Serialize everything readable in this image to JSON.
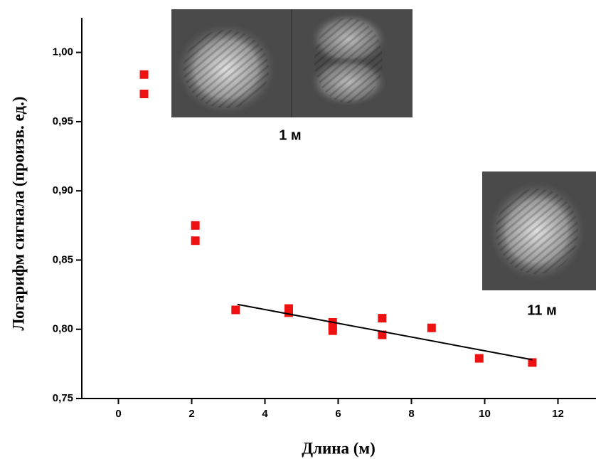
{
  "chart_data": {
    "type": "scatter",
    "xlabel": "Длина (м)",
    "ylabel": "Логарифм сигнала (произв. ед.)",
    "annotations": [
      "1 м",
      "11 м"
    ],
    "xlim": [
      -1,
      13
    ],
    "xticks": [
      0,
      2,
      4,
      6,
      8,
      10,
      12
    ],
    "ylim": [
      0.75,
      1.025
    ],
    "yticks": [
      {
        "value": 0.75,
        "label": "0,75"
      },
      {
        "value": 0.8,
        "label": "0,80"
      },
      {
        "value": 0.85,
        "label": "0,85"
      },
      {
        "value": 0.9,
        "label": "0,90"
      },
      {
        "value": 0.95,
        "label": "0,95"
      },
      {
        "value": 1.0,
        "label": "1,00"
      }
    ],
    "series": [
      {
        "type": "scatter",
        "color": "#ee1111",
        "x": [
          0.7,
          0.7,
          2.1,
          2.1,
          3.2,
          4.65,
          4.65,
          5.85,
          5.85,
          5.85,
          7.2,
          7.2,
          8.55,
          9.85,
          11.3
        ],
        "values": [
          0.984,
          0.97,
          0.875,
          0.864,
          0.814,
          0.815,
          0.812,
          0.805,
          0.802,
          0.799,
          0.808,
          0.796,
          0.801,
          0.779,
          0.776
        ]
      },
      {
        "type": "line",
        "color": "#000000",
        "x": [
          3.25,
          11.3
        ],
        "values": [
          0.818,
          0.778
        ]
      }
    ]
  }
}
